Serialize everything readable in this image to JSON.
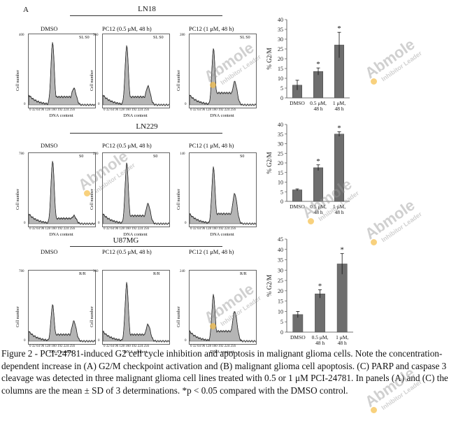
{
  "figure": {
    "panel_label": "A",
    "rows": [
      {
        "cell_line": "LN18",
        "conditions": [
          "DMSO",
          "PC12 (0.5 μM, 48 h)",
          "PC12 (1 μM, 48 h)"
        ],
        "y_label": "Cell number",
        "x_label": "DNA content",
        "x_ticks": "0  32  64  96  128 160 192 224 256",
        "corner_tags": [
          "SL S0",
          "SL S0",
          "SL S0"
        ],
        "y_max_labels": [
          "400",
          "360",
          "280"
        ]
      },
      {
        "cell_line": "LN229",
        "conditions": [
          "DMSO",
          "PC12 (0.5 μM, 48 h)",
          "PC12 (1 μM, 48 h)"
        ],
        "y_label": "Cell number",
        "x_label": "DNA content",
        "x_ticks": "0  32  64  96  128 160 192 224 256",
        "corner_tags": [
          "S0",
          "S0",
          "S0"
        ],
        "y_max_labels": [
          "780",
          "220",
          "140"
        ]
      },
      {
        "cell_line": "U87MG",
        "conditions": [
          "DMSO",
          "PC12 (0.5 μM, 48 h)",
          "PC12 (1 μM, 48 h)"
        ],
        "y_label": "Cell number",
        "x_label": "DNA content",
        "x_ticks": "0  32  64  96  128 160 192 224 256",
        "corner_tags": [
          "R/R",
          "R/R",
          "R/R"
        ],
        "y_max_labels": [
          "780",
          "360",
          "240"
        ]
      }
    ],
    "caption": "Figure 2 - PCI-24781-induced G2 cell cycle inhibition and apoptosis in malignant glioma cells. Note the concentration-dependent increase in (A) G2/M checkpoint activation and (B) malignant glioma cell apoptosis. (C) PARP and caspase 3 cleavage was detected in three malignant glioma cell lines treated with 0.5 or 1 μM PCI-24781. In panels (A) and (C) the columns are the mean ± SD of 3 determinations. *p < 0.05 compared with the DMSO control.",
    "watermark": {
      "brand": "Abmole",
      "tagline": "Inhibitor Leader"
    }
  },
  "chart_data": [
    {
      "type": "bar",
      "ylabel": "% G2/M",
      "categories": [
        "DMSO",
        "0.5 μM, 48 h",
        "1 μM, 48 h"
      ],
      "values": [
        6.5,
        13.5,
        27
      ],
      "errors": [
        2.5,
        1.8,
        6.5
      ],
      "significance": [
        "",
        "*",
        "*"
      ],
      "ylim": [
        0,
        40
      ],
      "yticks": [
        0,
        5,
        10,
        15,
        20,
        25,
        30,
        35,
        40
      ]
    },
    {
      "type": "bar",
      "ylabel": "% G2/M",
      "categories": [
        "DMSO",
        "0.5 μM, 48 h",
        "1 μM, 48 h"
      ],
      "values": [
        6,
        17.5,
        35
      ],
      "errors": [
        0.5,
        1.5,
        1.2
      ],
      "significance": [
        "",
        "*",
        "*"
      ],
      "ylim": [
        0,
        40
      ],
      "yticks": [
        0,
        5,
        10,
        15,
        20,
        25,
        30,
        35,
        40
      ]
    },
    {
      "type": "bar",
      "ylabel": "% G2/M",
      "categories": [
        "DMSO",
        "0.5 μM, 48 h",
        "1 μM, 48 h"
      ],
      "values": [
        8.5,
        18.5,
        33
      ],
      "errors": [
        1.5,
        2.0,
        5.0
      ],
      "significance": [
        "",
        "*",
        "*"
      ],
      "ylim": [
        0,
        45
      ],
      "yticks": [
        0,
        5,
        10,
        15,
        20,
        25,
        30,
        35,
        40,
        45
      ]
    }
  ]
}
